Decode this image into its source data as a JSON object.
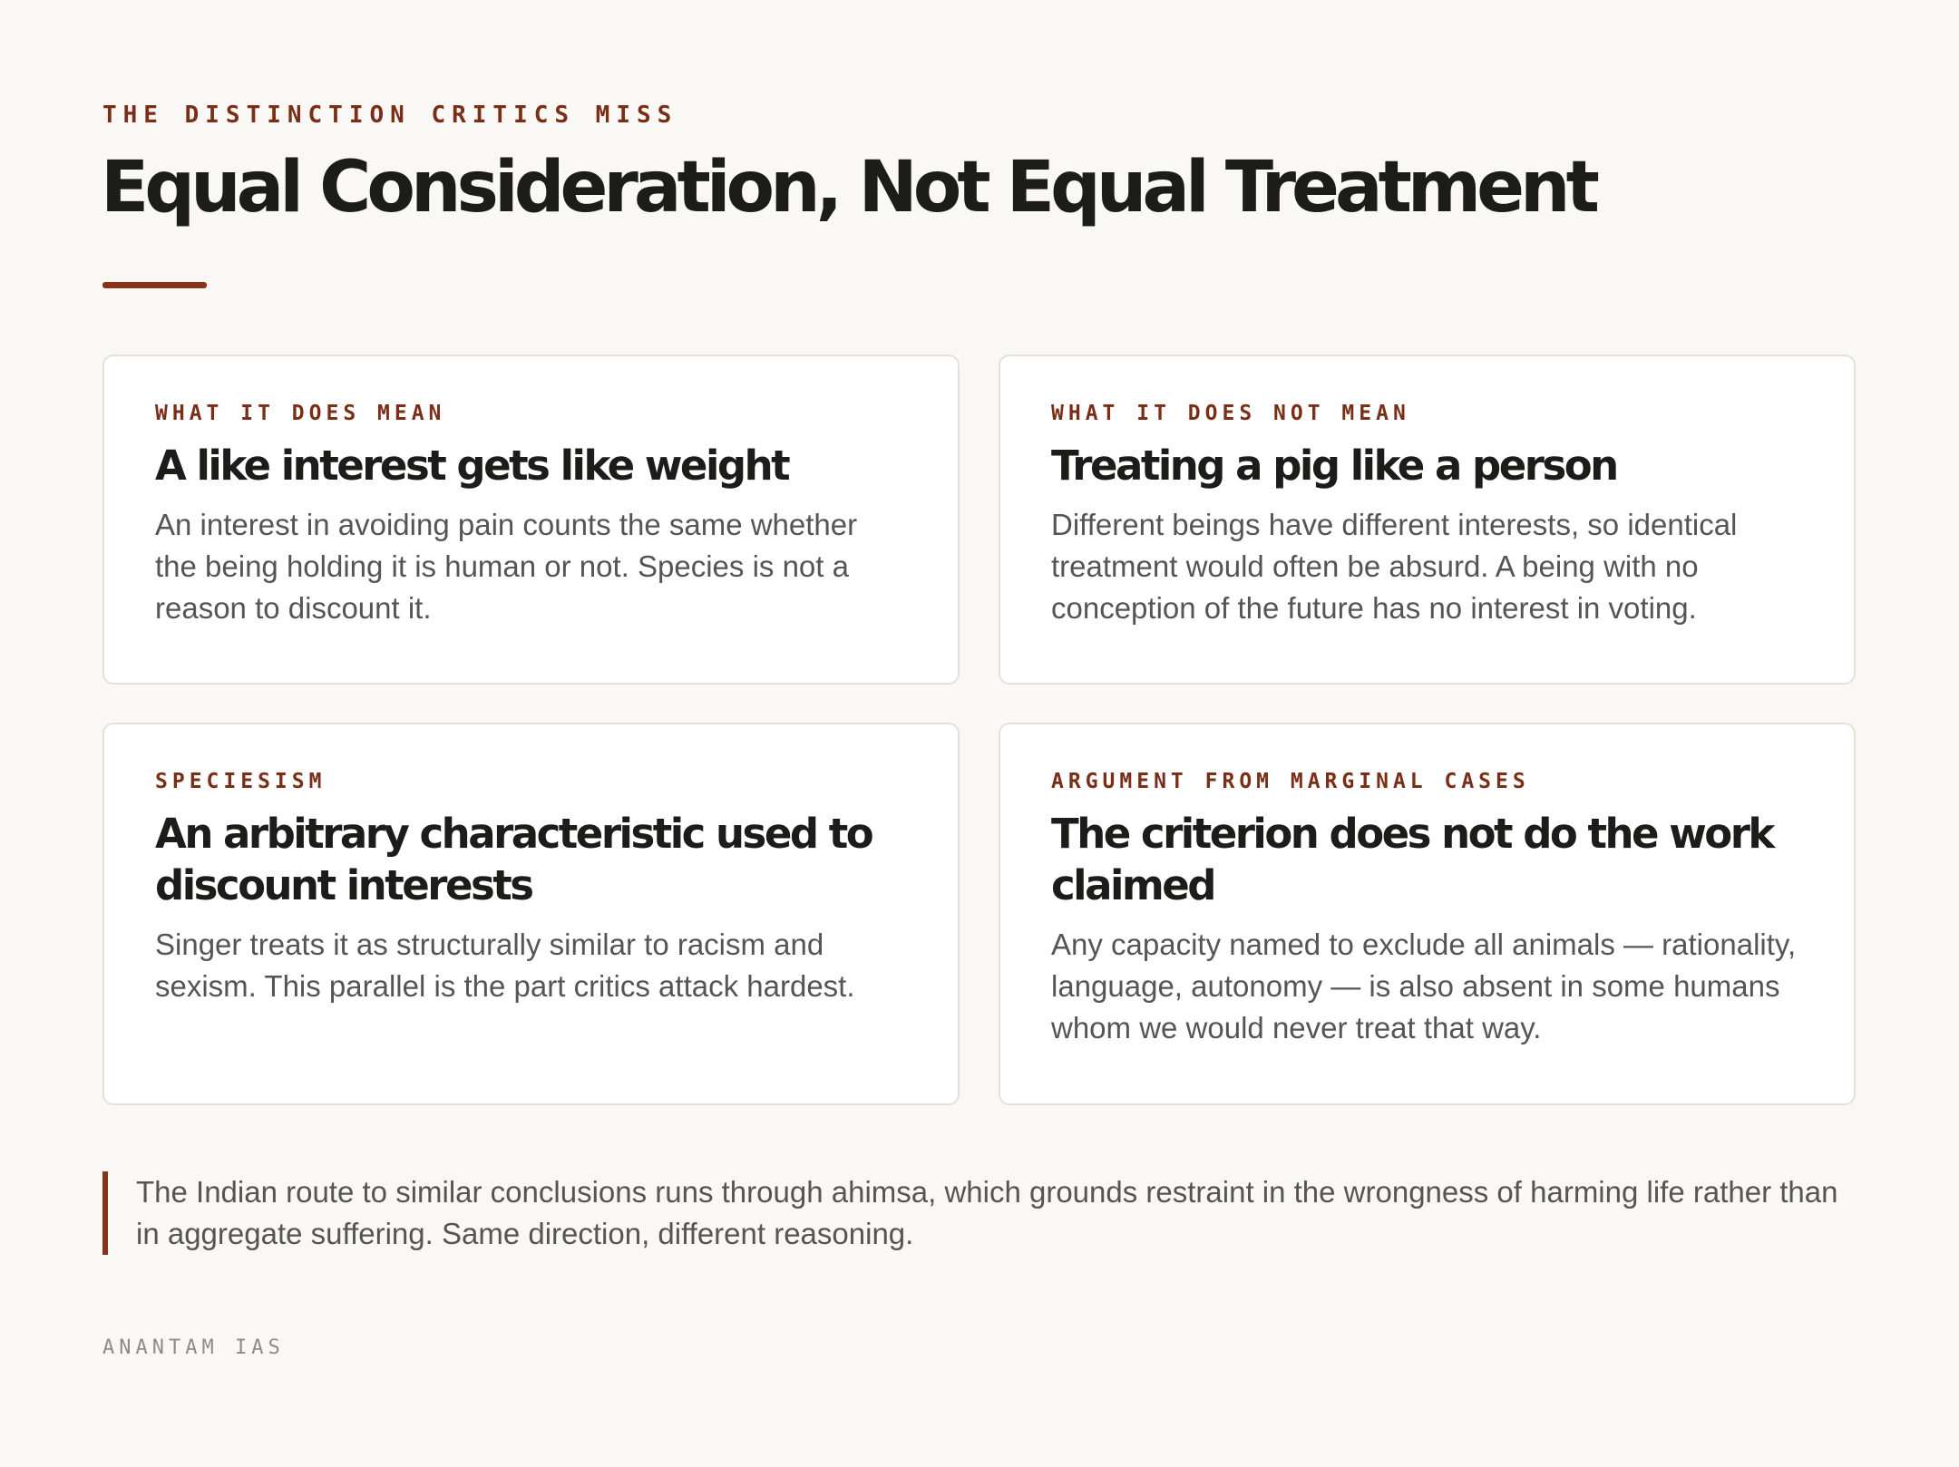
{
  "header": {
    "eyebrow": "THE DISTINCTION CRITICS MISS",
    "title": "Equal Consideration, Not Equal Treatment"
  },
  "cards": [
    {
      "label": "WHAT IT DOES MEAN",
      "heading": "A like interest gets like weight",
      "body": "An interest in avoiding pain counts the same whether the being holding it is human or not. Species is not a reason to discount it."
    },
    {
      "label": "WHAT IT DOES NOT MEAN",
      "heading": "Treating a pig like a person",
      "body": "Different beings have different interests, so identical treatment would often be absurd. A being with no conception of the future has no interest in voting."
    },
    {
      "label": "SPECIESISM",
      "heading": "An arbitrary characteristic used to discount interests",
      "body": "Singer treats it as structurally similar to racism and sexism. This parallel is the part critics attack hardest."
    },
    {
      "label": "ARGUMENT FROM MARGINAL CASES",
      "heading": "The criterion does not do the work claimed",
      "body": "Any capacity named to exclude all animals — rationality, language, autonomy — is also absent in some humans whom we would never treat that way."
    }
  ],
  "note": "The Indian route to similar conclusions runs through ahimsa, which grounds restraint in the wrongness of harming life rather than in aggregate suffering. Same direction, different reasoning.",
  "footer": "ANANTAM IAS"
}
